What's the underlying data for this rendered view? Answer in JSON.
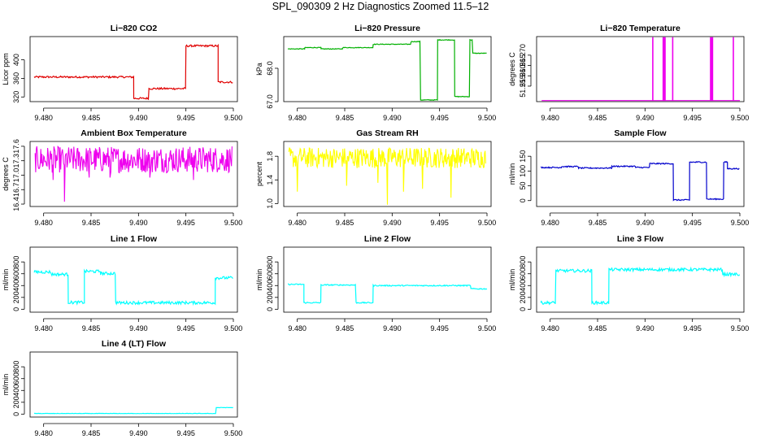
{
  "page": {
    "title": "SPL_090309  2 Hz Diagnostics Zoomed 11.5–12"
  },
  "chart_data": [
    {
      "type": "line",
      "title": "Li−820 CO2",
      "ylabel": "Licor ppm",
      "color": "#e00000",
      "xlim": [
        9.479,
        9.5
      ],
      "ylim": [
        310,
        450
      ],
      "x_ticks": [
        "9.480",
        "9.485",
        "9.490",
        "9.495",
        "9.500"
      ],
      "y_ticks": [
        {
          "value": 320,
          "label": "320"
        },
        {
          "value": 360,
          "label": "360"
        },
        {
          "value": 400,
          "label": "400"
        }
      ],
      "noise": 2,
      "segments": [
        {
          "x": [
            9.479,
            9.4895
          ],
          "y": 363
        },
        {
          "x": [
            9.4895,
            9.4911
          ],
          "y": 317
        },
        {
          "x": [
            9.4911,
            9.495
          ],
          "y": 338
        },
        {
          "x": [
            9.495,
            9.4984
          ],
          "y": 430
        },
        {
          "x": [
            9.4984,
            9.5
          ],
          "y": 352
        }
      ]
    },
    {
      "type": "line",
      "title": "Li−820 Pressure",
      "ylabel": "kPa",
      "color": "#00b000",
      "xlim": [
        9.479,
        9.5
      ],
      "ylim": [
        67.0,
        68.95
      ],
      "x_ticks": [
        "9.480",
        "9.485",
        "9.490",
        "9.495",
        "9.500"
      ],
      "y_ticks": [
        {
          "value": 67.0,
          "label": "67.0"
        },
        {
          "value": 68.0,
          "label": "68.0"
        }
      ],
      "noise": 0.01,
      "segments": [
        {
          "x": [
            9.479,
            9.4808
          ],
          "y": 68.58
        },
        {
          "x": [
            9.4808,
            9.4825
          ],
          "y": 68.62
        },
        {
          "x": [
            9.4825,
            9.4848
          ],
          "y": 68.58
        },
        {
          "x": [
            9.4848,
            9.488
          ],
          "y": 68.62
        },
        {
          "x": [
            9.488,
            9.492
          ],
          "y": 68.72
        },
        {
          "x": [
            9.492,
            9.493
          ],
          "y": 68.8
        },
        {
          "x": [
            9.493,
            9.4948
          ],
          "y": 67.05
        },
        {
          "x": [
            9.4948,
            9.4966
          ],
          "y": 68.85
        },
        {
          "x": [
            9.4966,
            9.4982
          ],
          "y": 67.15
        },
        {
          "x": [
            9.4982,
            9.4985
          ],
          "y": 68.85
        },
        {
          "x": [
            9.4985,
            9.5
          ],
          "y": 68.45
        }
      ]
    },
    {
      "type": "line",
      "title": "Li−820 Temperature",
      "ylabel": "degrees C",
      "color": "#ee00ee",
      "xlim": [
        9.479,
        9.5
      ],
      "ylim": [
        51.2475,
        51.279
      ],
      "x_ticks": [
        "9.480",
        "9.485",
        "9.490",
        "9.495",
        "9.500"
      ],
      "y_ticks": [
        {
          "value": 51.255,
          "label": "51.255"
        },
        {
          "value": 51.26,
          "label": "51.260"
        },
        {
          "value": 51.265,
          "label": "51.265"
        },
        {
          "value": 51.27,
          "label": "51.270"
        }
      ],
      "baseline": 51.248,
      "spike_top": 51.2785,
      "spikes": [
        9.4908,
        9.4919,
        9.492,
        9.4921,
        9.4929,
        9.4969,
        9.497,
        9.4971,
        9.4993
      ]
    },
    {
      "type": "line",
      "title": "Ambient Box Temperature",
      "ylabel": "degrees C",
      "color": "#ee00ee",
      "xlim": [
        9.479,
        9.5
      ],
      "ylim": [
        16.35,
        17.7
      ],
      "x_ticks": [
        "9.480",
        "9.485",
        "9.490",
        "9.495",
        "9.500"
      ],
      "y_ticks": [
        {
          "value": 16.4,
          "label": "16.4"
        },
        {
          "value": 16.7,
          "label": "16.7"
        },
        {
          "value": 17.0,
          "label": "17.0"
        },
        {
          "value": 17.3,
          "label": "17.3"
        },
        {
          "value": 17.6,
          "label": "17.6"
        }
      ],
      "band": [
        17.05,
        17.6
      ],
      "drops": [
        {
          "x": 9.4822,
          "y": 16.45
        },
        {
          "x": 9.481,
          "y": 16.9
        },
        {
          "x": 9.4848,
          "y": 16.95
        },
        {
          "x": 9.487,
          "y": 16.95
        },
        {
          "x": 9.4912,
          "y": 16.95
        },
        {
          "x": 9.4958,
          "y": 16.9
        }
      ]
    },
    {
      "type": "line",
      "title": "Gas Stream RH",
      "ylabel": "percent",
      "color": "#ffff00",
      "xlim": [
        9.479,
        9.5
      ],
      "ylim": [
        0.95,
        2.05
      ],
      "x_ticks": [
        "9.480",
        "9.485",
        "9.490",
        "9.495",
        "9.500"
      ],
      "y_ticks": [
        {
          "value": 1.0,
          "label": "1.0"
        },
        {
          "value": 1.4,
          "label": "1.4"
        },
        {
          "value": 1.8,
          "label": "1.8"
        }
      ],
      "band": [
        1.6,
        1.95
      ],
      "drops": [
        {
          "x": 9.48,
          "y": 1.2
        },
        {
          "x": 9.4895,
          "y": 0.98
        },
        {
          "x": 9.4852,
          "y": 1.3
        },
        {
          "x": 9.4912,
          "y": 1.2
        },
        {
          "x": 9.4932,
          "y": 1.25
        },
        {
          "x": 9.4962,
          "y": 1.1
        },
        {
          "x": 9.4885,
          "y": 1.35
        }
      ]
    },
    {
      "type": "line",
      "title": "Sample Flow",
      "ylabel": "ml/min",
      "color": "#0000cc",
      "xlim": [
        9.479,
        9.5
      ],
      "ylim": [
        -20,
        200
      ],
      "x_ticks": [
        "9.480",
        "9.485",
        "9.490",
        "9.495",
        "9.500"
      ],
      "y_ticks": [
        {
          "value": 0,
          "label": "0"
        },
        {
          "value": 50,
          "label": "50"
        },
        {
          "value": 100,
          "label": "100"
        },
        {
          "value": 150,
          "label": "150"
        }
      ],
      "noise": 2,
      "segments": [
        {
          "x": [
            9.479,
            9.4812
          ],
          "y": 112
        },
        {
          "x": [
            9.4812,
            9.483
          ],
          "y": 115
        },
        {
          "x": [
            9.483,
            9.4865
          ],
          "y": 110
        },
        {
          "x": [
            9.4865,
            9.489
          ],
          "y": 116
        },
        {
          "x": [
            9.489,
            9.4905
          ],
          "y": 112
        },
        {
          "x": [
            9.4905,
            9.493
          ],
          "y": 125
        },
        {
          "x": [
            9.493,
            9.4947
          ],
          "y": 2
        },
        {
          "x": [
            9.4947,
            9.4965
          ],
          "y": 130
        },
        {
          "x": [
            9.4965,
            9.4983
          ],
          "y": 5
        },
        {
          "x": [
            9.4983,
            9.4987
          ],
          "y": 130
        },
        {
          "x": [
            9.4987,
            9.5
          ],
          "y": 108
        }
      ]
    },
    {
      "type": "line",
      "title": "Line 1 Flow",
      "ylabel": "ml/min",
      "color": "#00ffff",
      "xlim": [
        9.479,
        9.5
      ],
      "ylim": [
        -50,
        1050
      ],
      "x_ticks": [
        "9.480",
        "9.485",
        "9.490",
        "9.495",
        "9.500"
      ],
      "y_ticks": [
        {
          "value": 0,
          "label": "0"
        },
        {
          "value": 200,
          "label": "200"
        },
        {
          "value": 400,
          "label": "400"
        },
        {
          "value": 600,
          "label": "600"
        },
        {
          "value": 800,
          "label": "800"
        }
      ],
      "noise": 25,
      "segments": [
        {
          "x": [
            9.479,
            9.4808
          ],
          "y": 630
        },
        {
          "x": [
            9.4808,
            9.4826
          ],
          "y": 590
        },
        {
          "x": [
            9.4826,
            9.4843
          ],
          "y": 115
        },
        {
          "x": [
            9.4843,
            9.486
          ],
          "y": 640
        },
        {
          "x": [
            9.486,
            9.4876
          ],
          "y": 605
        },
        {
          "x": [
            9.4876,
            9.4981
          ],
          "y": 110
        },
        {
          "x": [
            9.4981,
            9.5
          ],
          "y": 530
        }
      ]
    },
    {
      "type": "line",
      "title": "Line 2 Flow",
      "ylabel": "ml/min",
      "color": "#00ffff",
      "xlim": [
        9.479,
        9.5
      ],
      "ylim": [
        -50,
        1050
      ],
      "x_ticks": [
        "9.480",
        "9.485",
        "9.490",
        "9.495",
        "9.500"
      ],
      "y_ticks": [
        {
          "value": 0,
          "label": "0"
        },
        {
          "value": 200,
          "label": "200"
        },
        {
          "value": 400,
          "label": "400"
        },
        {
          "value": 600,
          "label": "600"
        },
        {
          "value": 800,
          "label": "800"
        }
      ],
      "noise": 10,
      "segments": [
        {
          "x": [
            9.479,
            9.4807
          ],
          "y": 420
        },
        {
          "x": [
            9.4807,
            9.4825
          ],
          "y": 110
        },
        {
          "x": [
            9.4825,
            9.4862
          ],
          "y": 410
        },
        {
          "x": [
            9.4862,
            9.488
          ],
          "y": 110
        },
        {
          "x": [
            9.488,
            9.4983
          ],
          "y": 400
        },
        {
          "x": [
            9.4983,
            9.5
          ],
          "y": 345
        }
      ]
    },
    {
      "type": "line",
      "title": "Line 3 Flow",
      "ylabel": "ml/min",
      "color": "#00ffff",
      "xlim": [
        9.479,
        9.5
      ],
      "ylim": [
        -50,
        1050
      ],
      "x_ticks": [
        "9.480",
        "9.485",
        "9.490",
        "9.495",
        "9.500"
      ],
      "y_ticks": [
        {
          "value": 0,
          "label": "0"
        },
        {
          "value": 200,
          "label": "200"
        },
        {
          "value": 400,
          "label": "400"
        },
        {
          "value": 600,
          "label": "600"
        },
        {
          "value": 800,
          "label": "800"
        }
      ],
      "noise": 25,
      "segments": [
        {
          "x": [
            9.479,
            9.4806
          ],
          "y": 110
        },
        {
          "x": [
            9.4806,
            9.4844
          ],
          "y": 650
        },
        {
          "x": [
            9.4844,
            9.4862
          ],
          "y": 110
        },
        {
          "x": [
            9.4862,
            9.4982
          ],
          "y": 670
        },
        {
          "x": [
            9.4982,
            9.5
          ],
          "y": 590
        }
      ]
    },
    {
      "type": "line",
      "title": "Line 4 (LT) Flow",
      "ylabel": "ml/min",
      "color": "#00ffff",
      "xlim": [
        9.479,
        9.5
      ],
      "ylim": [
        -50,
        1050
      ],
      "x_ticks": [
        "9.480",
        "9.485",
        "9.490",
        "9.495",
        "9.500"
      ],
      "y_ticks": [
        {
          "value": 0,
          "label": "0"
        },
        {
          "value": 200,
          "label": "200"
        },
        {
          "value": 400,
          "label": "400"
        },
        {
          "value": 600,
          "label": "600"
        },
        {
          "value": 800,
          "label": "800"
        }
      ],
      "noise": 3,
      "segments": [
        {
          "x": [
            9.479,
            9.4982
          ],
          "y": 10
        },
        {
          "x": [
            9.4982,
            9.5
          ],
          "y": 110
        }
      ]
    }
  ]
}
